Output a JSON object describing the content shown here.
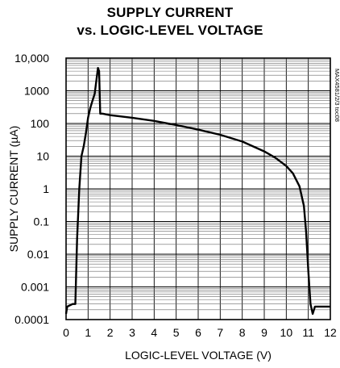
{
  "chart_data": {
    "type": "line",
    "title": "SUPPLY CURRENT",
    "subtitle": "vs. LOGIC-LEVEL VOLTAGE",
    "xlabel": "LOGIC-LEVEL VOLTAGE (V)",
    "ylabel": "SUPPLY CURRENT (µA)",
    "side_label": "MAX4581/2/3 toc08",
    "xlim": [
      0,
      12
    ],
    "ylim": [
      0.0001,
      10000
    ],
    "y_scale": "log",
    "grid": true,
    "x_ticks": [
      0,
      1,
      2,
      3,
      4,
      5,
      6,
      7,
      8,
      9,
      10,
      11,
      12
    ],
    "x_tick_labels": [
      "0",
      "1",
      "2",
      "3",
      "4",
      "5",
      "6",
      "7",
      "8",
      "9",
      "10",
      "11",
      "12"
    ],
    "y_ticks": [
      0.0001,
      0.001,
      0.01,
      0.1,
      1,
      10,
      100,
      1000,
      10000
    ],
    "y_tick_labels": [
      "0.0001",
      "0.001",
      "0.01",
      "0.1",
      "1",
      "10",
      "100",
      "1000",
      "10,000"
    ],
    "series": [
      {
        "x": [
          0.0,
          0.05,
          0.3,
          0.4,
          0.42,
          0.5,
          0.6,
          0.7,
          0.8,
          0.9,
          1.0,
          1.1,
          1.2,
          1.3,
          1.35,
          1.45,
          1.5,
          1.55,
          1.6,
          1.65,
          2.0,
          3.0,
          4.0,
          5.0,
          6.0,
          7.0,
          8.0,
          9.0,
          9.5,
          10.0,
          10.3,
          10.6,
          10.8,
          10.9,
          11.0,
          11.1,
          11.2,
          11.3,
          11.4,
          12.0
        ],
        "y": [
          0.00015,
          0.00025,
          0.0003,
          0.0003,
          0.0003,
          0.03,
          1,
          10,
          20,
          50,
          150,
          300,
          500,
          800,
          1500,
          5000,
          4000,
          200,
          200,
          200,
          180,
          150,
          120,
          90,
          65,
          45,
          28,
          14,
          9,
          5,
          3,
          1.2,
          0.3,
          0.05,
          0.003,
          0.0003,
          0.00015,
          0.00025,
          0.00025,
          0.00025
        ]
      }
    ]
  }
}
